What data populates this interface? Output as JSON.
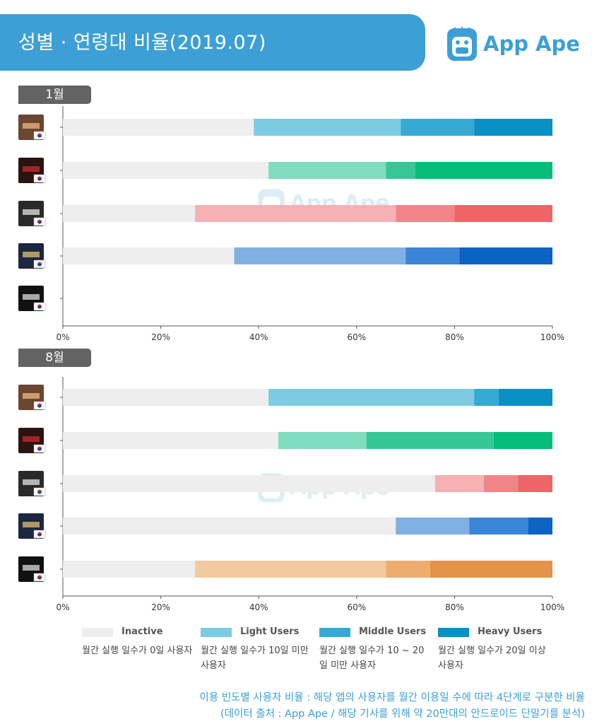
{
  "header": {
    "title": "성별 · 연령대 비율(2019.07)",
    "brand": "App Ape",
    "brand_color": "#3d9fd6"
  },
  "watermark": "App Ape",
  "chart_data": [
    {
      "type": "bar",
      "orientation": "horizontal",
      "stacked": true,
      "title": "1월",
      "categories": [
        "app-1",
        "app-2",
        "app-3",
        "app-4",
        "app-5"
      ],
      "series": [
        {
          "name": "Inactive",
          "values": [
            39,
            42,
            27,
            35,
            0
          ]
        },
        {
          "name": "Light Users",
          "values": [
            30,
            24,
            41,
            35,
            0
          ]
        },
        {
          "name": "Middle Users",
          "values": [
            15,
            6,
            12,
            11,
            0
          ]
        },
        {
          "name": "Heavy Users",
          "values": [
            16,
            28,
            20,
            19,
            0
          ]
        }
      ],
      "xlim": [
        0,
        100
      ],
      "ticks": [
        "0%",
        "20%",
        "40%",
        "60%",
        "80%",
        "100%"
      ],
      "grid": false,
      "legend": "bottom"
    },
    {
      "type": "bar",
      "orientation": "horizontal",
      "stacked": true,
      "title": "8월",
      "categories": [
        "app-1",
        "app-2",
        "app-3",
        "app-4",
        "app-5"
      ],
      "series": [
        {
          "name": "Inactive",
          "values": [
            42,
            44,
            76,
            68,
            27
          ]
        },
        {
          "name": "Light Users",
          "values": [
            42,
            18,
            10,
            15,
            39
          ]
        },
        {
          "name": "Middle Users",
          "values": [
            5,
            26,
            7,
            12,
            9
          ]
        },
        {
          "name": "Heavy Users",
          "values": [
            11,
            12,
            7,
            5,
            25
          ]
        }
      ],
      "xlim": [
        0,
        100
      ],
      "ticks": [
        "0%",
        "20%",
        "40%",
        "60%",
        "80%",
        "100%"
      ],
      "grid": false,
      "legend": "bottom"
    }
  ],
  "app_colors": [
    [
      "#eeeeee",
      "#7ccbe3",
      "#36aad4",
      "#0b90c4"
    ],
    [
      "#eeeeee",
      "#7fdcbe",
      "#35c795",
      "#05bd79"
    ],
    [
      "#eeeeee",
      "#f6b1b4",
      "#f08588",
      "#ee6568"
    ],
    [
      "#eeeeee",
      "#82b0e2",
      "#3a85d6",
      "#0d63c4"
    ],
    [
      "#eeeeee",
      "#f3c9a0",
      "#eeac6e",
      "#e5934a"
    ]
  ],
  "legend": [
    {
      "name": "Inactive",
      "desc": "월간 실행 일수가 0일 사용자",
      "color": "#eeeeee"
    },
    {
      "name": "Light Users",
      "desc": "월간 실행 일수가 10일 미만 사용자",
      "color": "#7ccbe3"
    },
    {
      "name": "Middle Users",
      "desc": "월간 실행 일수가 10 ~ 20일 미만 사용자",
      "color": "#36aad4"
    },
    {
      "name": "Heavy Users",
      "desc": "월간 실행 일수가 20일 이상 사용자",
      "color": "#0b90c4"
    }
  ],
  "footer": {
    "line1": "이용 빈도별 사용자 비율 : 해당 앱의 사용자를 월간 이용일 수에 따라 4단계로 구분한 비율",
    "line2": "(데이터 출처 : App Ape / 해당 기사를 위해 약 20만대의 안드로이드 단말기를 분석)"
  }
}
